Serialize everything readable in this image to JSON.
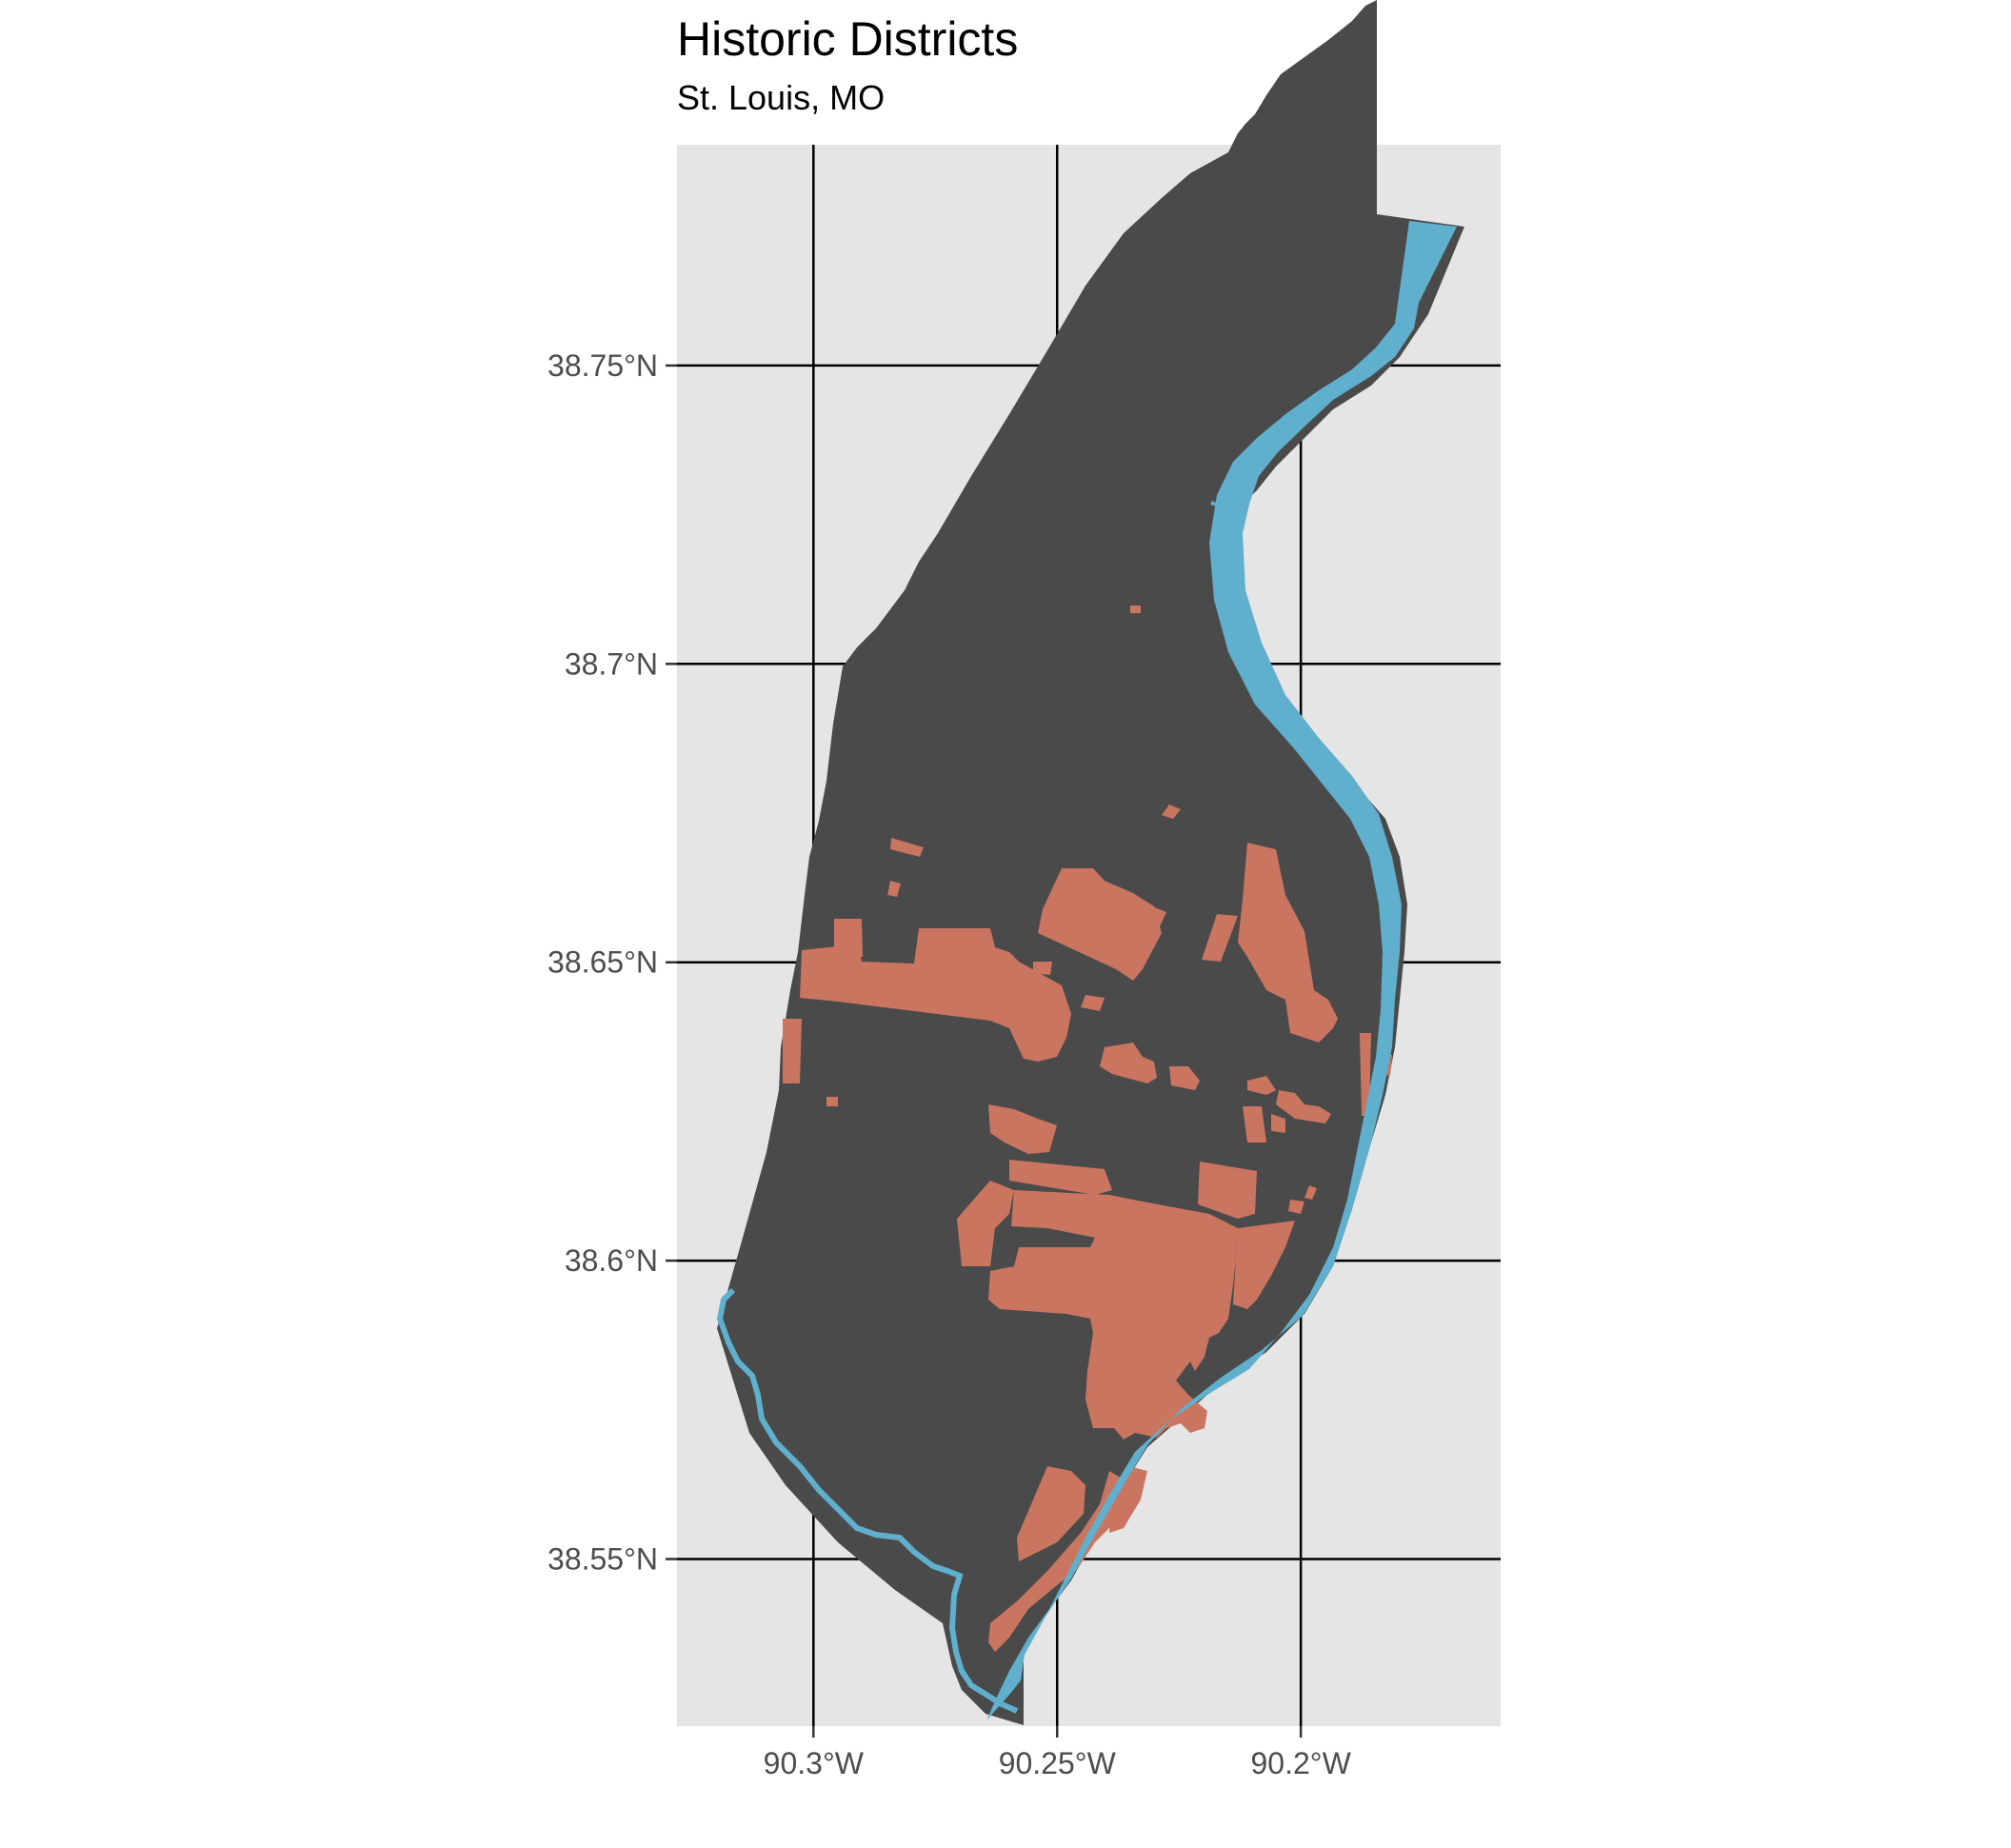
{
  "title": "Historic Districts",
  "subtitle": "St. Louis, MO",
  "colors": {
    "panel": "#e5e5e5",
    "city": "#4a4a4a",
    "districts": "#c97560",
    "water": "#5fafcd",
    "grid": "#000000"
  },
  "axes": {
    "x_ticks": [
      {
        "value": -90.3,
        "label": "90.3°W"
      },
      {
        "value": -90.25,
        "label": "90.25°W"
      },
      {
        "value": -90.2,
        "label": "90.2°W"
      }
    ],
    "y_ticks": [
      {
        "value": 38.75,
        "label": "38.75°N"
      },
      {
        "value": 38.7,
        "label": "38.7°N"
      },
      {
        "value": 38.65,
        "label": "38.65°N"
      },
      {
        "value": 38.6,
        "label": "38.6°N"
      },
      {
        "value": 38.55,
        "label": "38.55°N"
      }
    ],
    "x_range": [
      -90.328,
      -90.159
    ],
    "y_range": [
      38.522,
      38.787
    ]
  },
  "layers": [
    "city-boundary",
    "historic-districts",
    "rivers"
  ]
}
